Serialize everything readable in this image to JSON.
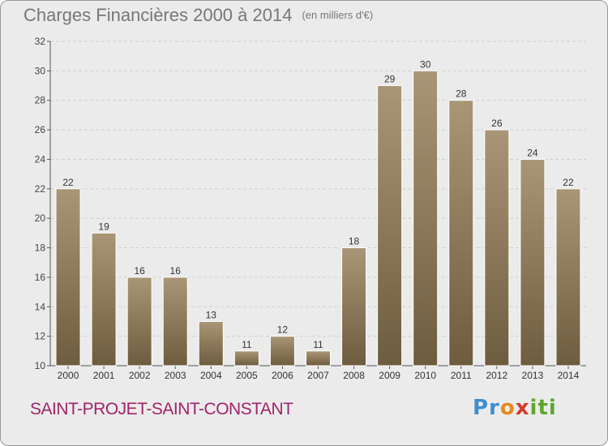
{
  "header": {
    "title": "Charges Financières 2000 à 2014",
    "subtitle": "(en milliers d'€)"
  },
  "footer": {
    "commune": "SAINT-PROJET-SAINT-CONSTANT",
    "logo": "Proxiti"
  },
  "colors": {
    "background": "#ebebeb",
    "bar_top": "#a89676",
    "bar_bottom": "#6e5c3e",
    "commune_text": "#a0246a"
  },
  "chart_data": {
    "type": "bar",
    "title": "Charges Financières 2000 à 2014",
    "subtitle": "(en milliers d'€)",
    "categories": [
      "2000",
      "2001",
      "2002",
      "2003",
      "2004",
      "2005",
      "2006",
      "2007",
      "2008",
      "2009",
      "2010",
      "2011",
      "2012",
      "2013",
      "2014"
    ],
    "values": [
      22,
      19,
      16,
      16,
      13,
      11,
      12,
      11,
      18,
      29,
      30,
      28,
      26,
      24,
      22
    ],
    "ylim": [
      10,
      32
    ],
    "yticks": [
      10,
      12,
      14,
      16,
      18,
      20,
      22,
      24,
      26,
      28,
      30,
      32
    ],
    "grid": true,
    "data_labels": true
  }
}
